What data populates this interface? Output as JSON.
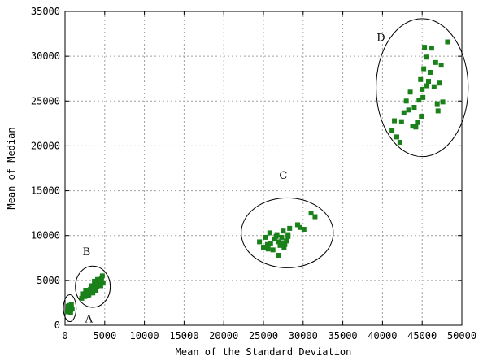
{
  "chart_data": {
    "type": "scatter",
    "title": "",
    "xlabel": "Mean of the Standard Deviation",
    "ylabel": "Mean of Median",
    "xlim": [
      0,
      50000
    ],
    "ylim": [
      0,
      35000
    ],
    "x_ticks": [
      0,
      5000,
      10000,
      15000,
      20000,
      25000,
      30000,
      35000,
      40000,
      45000,
      50000
    ],
    "y_ticks": [
      0,
      5000,
      10000,
      15000,
      20000,
      25000,
      30000,
      35000
    ],
    "grid": true,
    "legend": "none",
    "point_color": "#1a801a",
    "clusters": [
      {
        "label": "A",
        "center": [
          600,
          1900
        ],
        "radius": [
          800,
          1500
        ],
        "label_at": [
          3000,
          300
        ],
        "points": [
          [
            300,
            1500
          ],
          [
            400,
            1800
          ],
          [
            500,
            1600
          ],
          [
            600,
            2000
          ],
          [
            700,
            1700
          ],
          [
            800,
            1900
          ],
          [
            500,
            2200
          ],
          [
            700,
            1400
          ],
          [
            400,
            2100
          ],
          [
            900,
            1800
          ],
          [
            600,
            1700
          ],
          [
            800,
            2300
          ]
        ]
      },
      {
        "label": "B",
        "center": [
          3500,
          4300
        ],
        "radius": [
          2200,
          2300
        ],
        "label_at": [
          2700,
          7800
        ],
        "points": [
          [
            2100,
            3000
          ],
          [
            2300,
            3500
          ],
          [
            2500,
            3200
          ],
          [
            2800,
            3800
          ],
          [
            3000,
            3400
          ],
          [
            3200,
            4000
          ],
          [
            3400,
            3700
          ],
          [
            3600,
            4200
          ],
          [
            3800,
            4600
          ],
          [
            4000,
            4300
          ],
          [
            4200,
            4800
          ],
          [
            4400,
            5000
          ],
          [
            4600,
            5200
          ],
          [
            4800,
            4700
          ],
          [
            2600,
            3900
          ],
          [
            3300,
            4400
          ],
          [
            3900,
            3900
          ],
          [
            4300,
            4500
          ],
          [
            4700,
            5500
          ],
          [
            3700,
            4900
          ],
          [
            2900,
            3300
          ],
          [
            4500,
            4400
          ],
          [
            4100,
            5100
          ],
          [
            3500,
            3600
          ]
        ]
      },
      {
        "label": "C",
        "center": [
          28000,
          10300
        ],
        "radius": [
          5800,
          3900
        ],
        "label_at": [
          27500,
          16300
        ],
        "points": [
          [
            24500,
            9300
          ],
          [
            25000,
            8700
          ],
          [
            25300,
            9800
          ],
          [
            25600,
            8500
          ],
          [
            25900,
            9100
          ],
          [
            26200,
            8400
          ],
          [
            26400,
            9600
          ],
          [
            26700,
            10100
          ],
          [
            26900,
            9300
          ],
          [
            27100,
            8900
          ],
          [
            27300,
            9800
          ],
          [
            27500,
            10500
          ],
          [
            27700,
            9000
          ],
          [
            27900,
            9400
          ],
          [
            28100,
            10100
          ],
          [
            27600,
            8700
          ],
          [
            26600,
            9900
          ],
          [
            25800,
            10300
          ],
          [
            28300,
            10800
          ],
          [
            29300,
            11200
          ],
          [
            29600,
            10900
          ],
          [
            30100,
            10700
          ],
          [
            31000,
            12500
          ],
          [
            31500,
            12100
          ],
          [
            26900,
            7800
          ],
          [
            28100,
            9900
          ],
          [
            27400,
            9200
          ],
          [
            25500,
            9000
          ]
        ]
      },
      {
        "label": "D",
        "center": [
          45000,
          26500
        ],
        "radius": [
          5800,
          7700
        ],
        "label_at": [
          39800,
          31700
        ],
        "points": [
          [
            41200,
            21700
          ],
          [
            41500,
            22800
          ],
          [
            41800,
            21000
          ],
          [
            42200,
            20400
          ],
          [
            42400,
            22700
          ],
          [
            42700,
            23700
          ],
          [
            43000,
            25000
          ],
          [
            43300,
            24000
          ],
          [
            43500,
            26000
          ],
          [
            43800,
            22200
          ],
          [
            44000,
            24300
          ],
          [
            44200,
            22100
          ],
          [
            44400,
            22600
          ],
          [
            44600,
            25100
          ],
          [
            44800,
            27400
          ],
          [
            45000,
            26300
          ],
          [
            45200,
            28600
          ],
          [
            45300,
            31000
          ],
          [
            45500,
            29900
          ],
          [
            45800,
            27200
          ],
          [
            46000,
            28200
          ],
          [
            46200,
            30900
          ],
          [
            46500,
            26600
          ],
          [
            46700,
            29300
          ],
          [
            46900,
            24700
          ],
          [
            47000,
            23900
          ],
          [
            47200,
            27000
          ],
          [
            47400,
            29000
          ],
          [
            47600,
            24900
          ],
          [
            48200,
            31600
          ],
          [
            45100,
            25400
          ],
          [
            45600,
            26700
          ],
          [
            44900,
            23300
          ]
        ]
      }
    ]
  }
}
